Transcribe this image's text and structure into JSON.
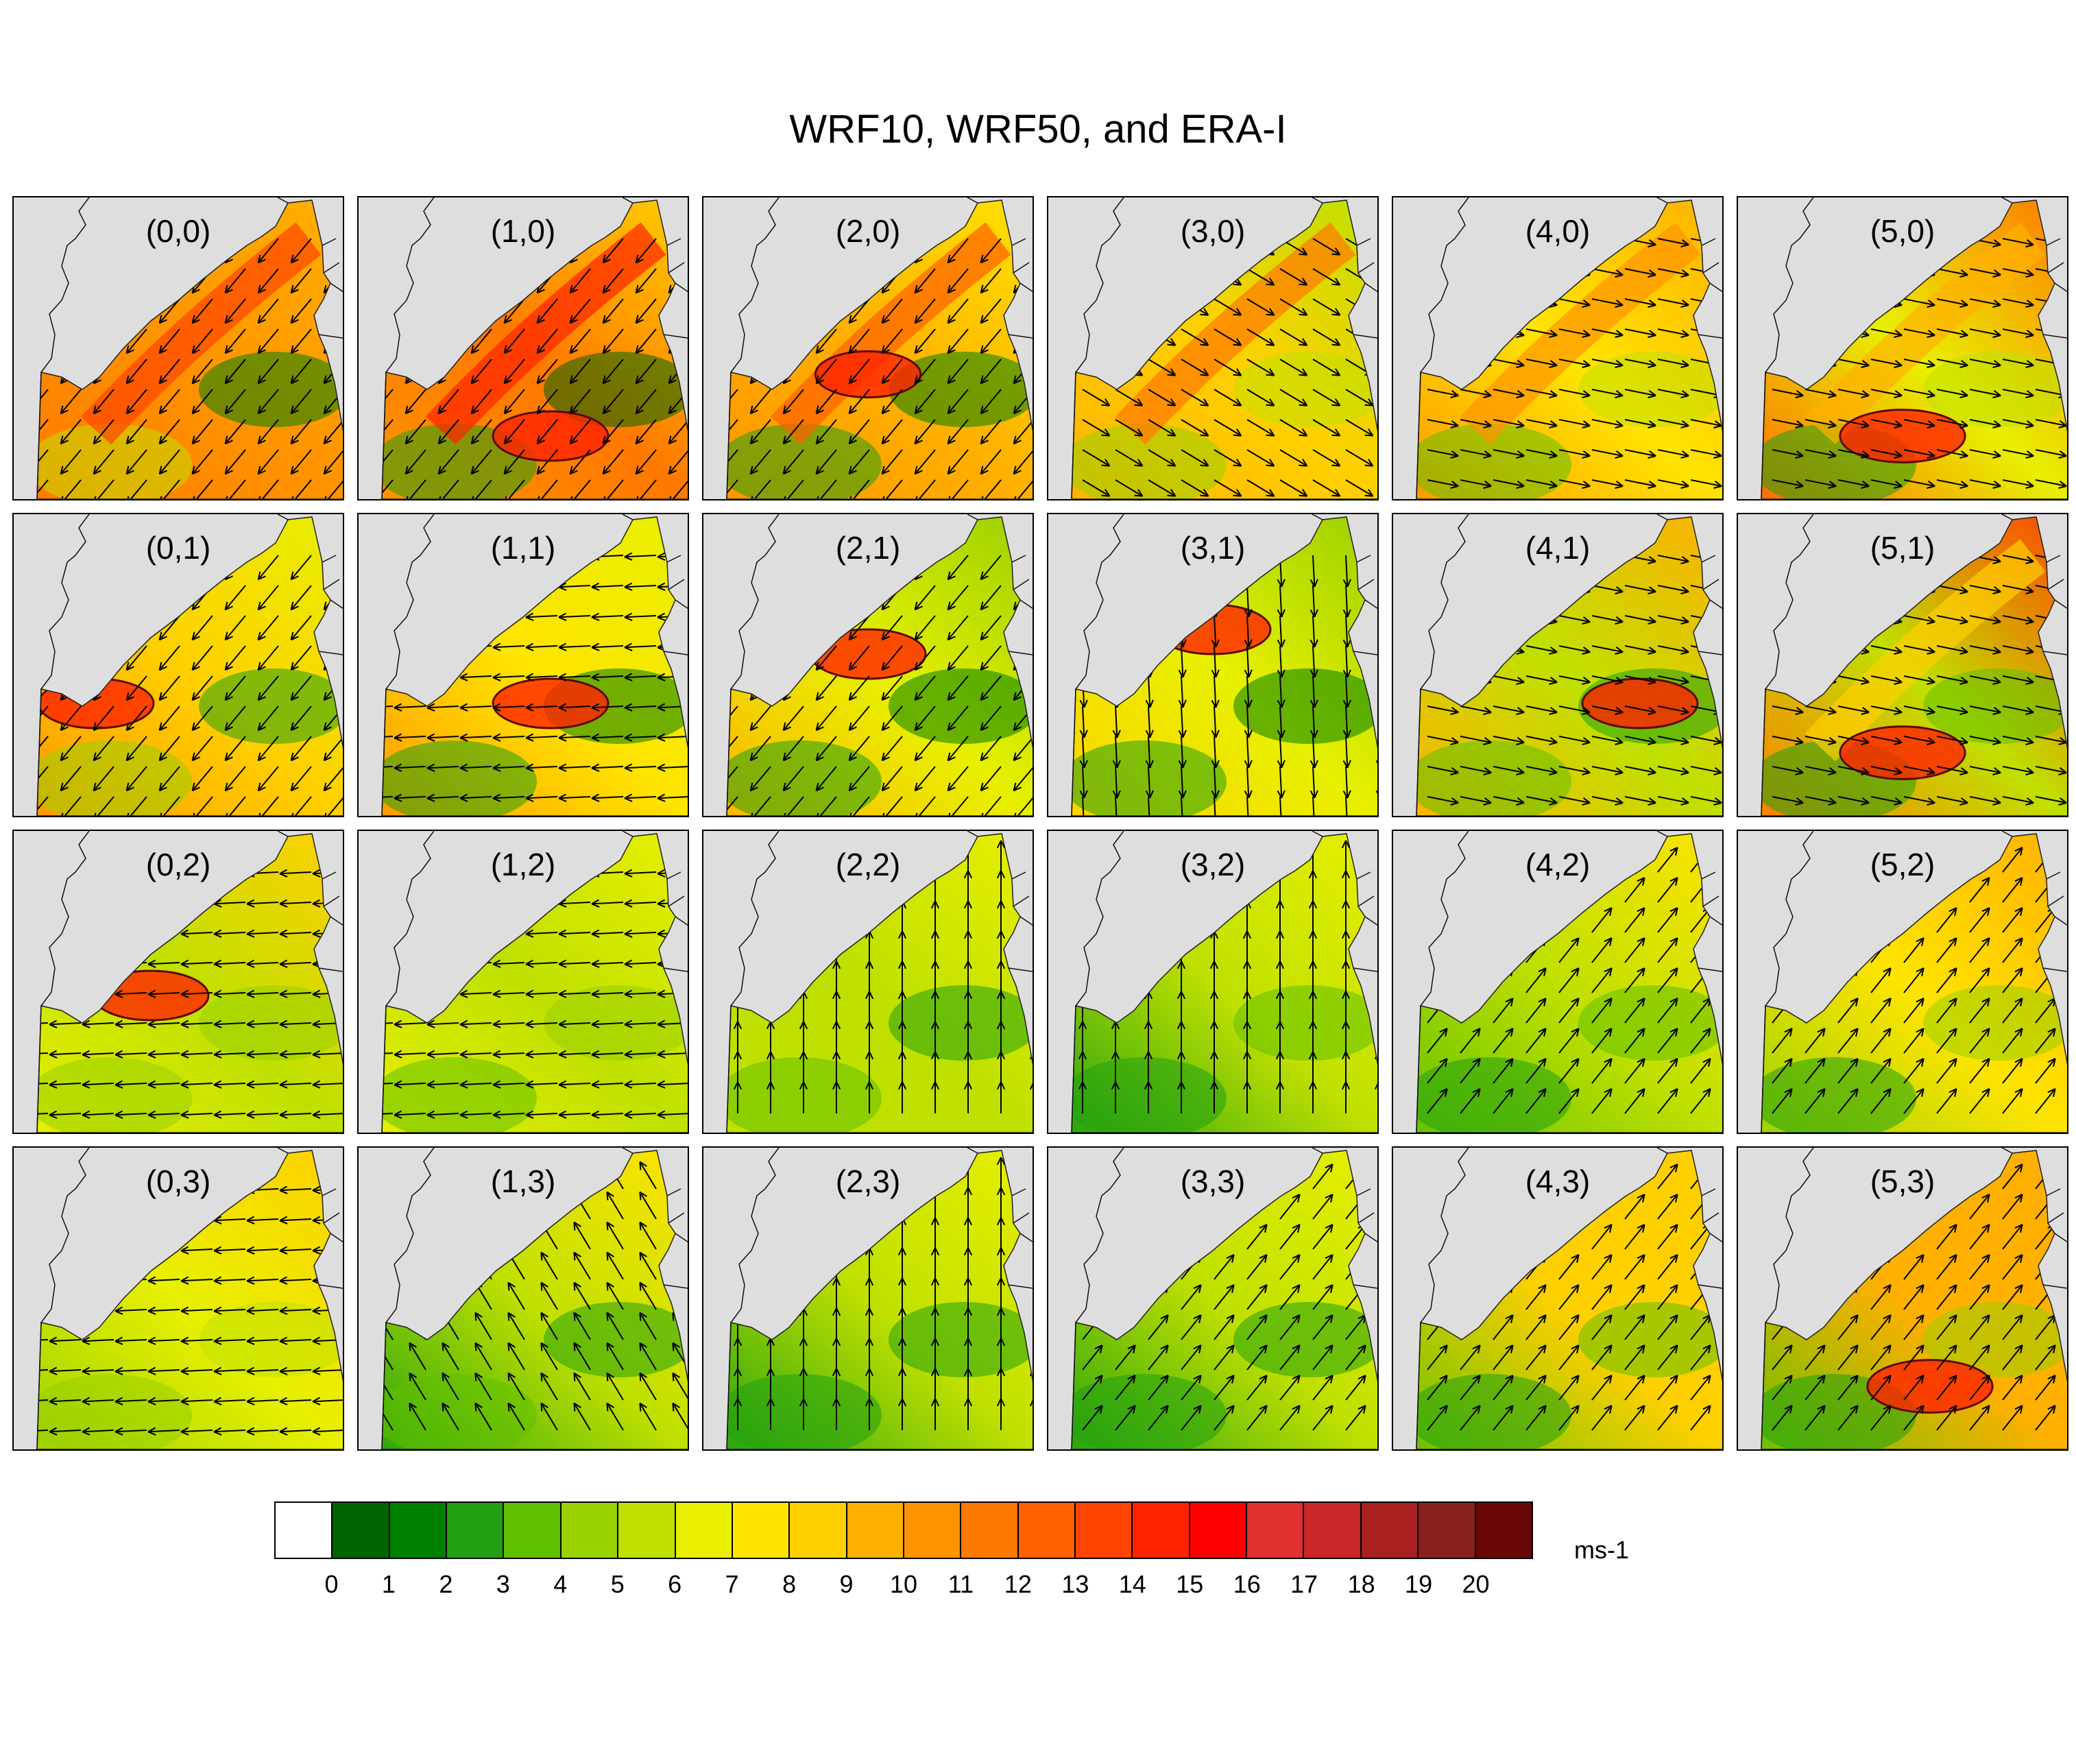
{
  "title": "WRF10, WRF50, and ERA-I",
  "panels": [
    {
      "label": "(0,0)",
      "c": [
        12,
        11,
        10
      ],
      "cs": [
        6,
        2
      ],
      "jet": 1,
      "ring": [
        -0.2,
        0.6,
        0.08
      ],
      "wind": "sw"
    },
    {
      "label": "(1,0)",
      "c": [
        11,
        12,
        9
      ],
      "cs": [
        3,
        1
      ],
      "jet": 1,
      "ring": [
        0.6,
        0.8,
        0.1
      ],
      "wind": "sw"
    },
    {
      "label": "(2,0)",
      "c": [
        11,
        10,
        8
      ],
      "cs": [
        3,
        2
      ],
      "jet": 1,
      "ring": [
        0.5,
        0.55,
        0.08
      ],
      "wind": "sw"
    },
    {
      "label": "(3,0)",
      "c": [
        10,
        9,
        6
      ],
      "cs": [
        5,
        6
      ],
      "jet": 1,
      "ring": [
        0.8,
        0.3,
        0.0
      ],
      "wind": "se"
    },
    {
      "label": "(4,0)",
      "c": [
        11,
        8,
        10
      ],
      "cs": [
        4,
        6
      ],
      "jet": 1,
      "ring": [
        0.9,
        0.3,
        0.0
      ],
      "wind": "e"
    },
    {
      "label": "(5,0)",
      "c": [
        13,
        7,
        12
      ],
      "cs": [
        3,
        6
      ],
      "jet": 1,
      "ring": [
        0.5,
        0.8,
        0.12
      ],
      "wind": "e"
    },
    {
      "label": "(0,1)",
      "c": [
        11,
        9,
        7
      ],
      "cs": [
        5,
        3
      ],
      "jet": 0,
      "ring": [
        0.2,
        0.6,
        0.1
      ],
      "wind": "sw"
    },
    {
      "label": "(1,1)",
      "c": [
        11,
        8,
        7
      ],
      "cs": [
        3,
        2
      ],
      "jet": 0,
      "ring": [
        0.6,
        0.6,
        0.1
      ],
      "wind": "w"
    },
    {
      "label": "(2,1)",
      "c": [
        10,
        7,
        5
      ],
      "cs": [
        3,
        2
      ],
      "jet": 0,
      "ring": [
        0.5,
        0.4,
        0.1
      ],
      "wind": "sw"
    },
    {
      "label": "(3,1)",
      "c": [
        9,
        7,
        5
      ],
      "cs": [
        3,
        2
      ],
      "jet": 0,
      "ring": [
        0.5,
        0.3,
        0.1
      ],
      "wind": "s"
    },
    {
      "label": "(4,1)",
      "c": [
        10,
        6,
        10
      ],
      "cs": [
        4,
        3
      ],
      "jet": 0,
      "ring": [
        0.8,
        0.6,
        0.1
      ],
      "wind": "e"
    },
    {
      "label": "(5,1)",
      "c": [
        12,
        6,
        14
      ],
      "cs": [
        3,
        4
      ],
      "jet": 1,
      "ring": [
        0.5,
        0.8,
        0.12
      ],
      "wind": "e"
    },
    {
      "label": "(0,2)",
      "c": [
        7,
        6,
        9
      ],
      "cs": [
        5,
        5
      ],
      "jet": 0,
      "ring": [
        0.4,
        0.5,
        0.1
      ],
      "wind": "w"
    },
    {
      "label": "(1,2)",
      "c": [
        7,
        6,
        7
      ],
      "cs": [
        4,
        5
      ],
      "jet": 0,
      "ring": [
        0.6,
        0.4,
        0.0
      ],
      "wind": "w"
    },
    {
      "label": "(2,2)",
      "c": [
        6,
        6,
        7
      ],
      "cs": [
        4,
        3
      ],
      "jet": 0,
      "ring": [
        0.6,
        0.2,
        0.0
      ],
      "wind": "n"
    },
    {
      "label": "(3,2)",
      "c": [
        3,
        6,
        7
      ],
      "cs": [
        3,
        4
      ],
      "jet": 0,
      "ring": [
        0.6,
        0.3,
        0.0
      ],
      "wind": "n"
    },
    {
      "label": "(4,2)",
      "c": [
        4,
        6,
        8
      ],
      "cs": [
        3,
        4
      ],
      "jet": 0,
      "ring": [
        0.7,
        0.4,
        0.0
      ],
      "wind": "ne"
    },
    {
      "label": "(5,2)",
      "c": [
        5,
        8,
        10
      ],
      "cs": [
        3,
        5
      ],
      "jet": 0,
      "ring": [
        0.8,
        0.5,
        0.0
      ],
      "wind": "ne"
    },
    {
      "label": "(0,3)",
      "c": [
        5,
        7,
        9
      ],
      "cs": [
        5,
        6
      ],
      "jet": 0,
      "ring": [
        0.4,
        0.4,
        0.0
      ],
      "wind": "w"
    },
    {
      "label": "(1,3)",
      "c": [
        3,
        6,
        8
      ],
      "cs": [
        4,
        3
      ],
      "jet": 0,
      "ring": [
        0.6,
        0.3,
        0.0
      ],
      "wind": "nw"
    },
    {
      "label": "(2,3)",
      "c": [
        3,
        6,
        7
      ],
      "cs": [
        3,
        3
      ],
      "jet": 0,
      "ring": [
        0.5,
        0.3,
        0.0
      ],
      "wind": "n"
    },
    {
      "label": "(3,3)",
      "c": [
        3,
        6,
        7
      ],
      "cs": [
        3,
        3
      ],
      "jet": 0,
      "ring": [
        0.5,
        0.3,
        0.0
      ],
      "wind": "ne"
    },
    {
      "label": "(4,3)",
      "c": [
        4,
        9,
        9
      ],
      "cs": [
        3,
        4
      ],
      "jet": 0,
      "ring": [
        0.7,
        0.5,
        0.0
      ],
      "wind": "ne"
    },
    {
      "label": "(5,3)",
      "c": [
        4,
        10,
        10
      ],
      "cs": [
        3,
        5
      ],
      "jet": 0,
      "ring": [
        0.6,
        0.8,
        0.12
      ],
      "wind": "ne"
    }
  ],
  "colorbar": {
    "colors": [
      "#ffffff",
      "#006400",
      "#008000",
      "#20a010",
      "#60c000",
      "#98d000",
      "#c0e000",
      "#e8f000",
      "#ffe400",
      "#ffd000",
      "#ffb000",
      "#ff9400",
      "#ff7800",
      "#ff6000",
      "#ff4400",
      "#ff2200",
      "#ff0000",
      "#e03030",
      "#c82828",
      "#a82020",
      "#882020",
      "#6a0808"
    ],
    "labels": [
      "0",
      "1",
      "2",
      "3",
      "4",
      "5",
      "6",
      "7",
      "8",
      "9",
      "10",
      "11",
      "12",
      "13",
      "14",
      "15",
      "16",
      "17",
      "18",
      "19",
      "20"
    ],
    "units": "ms-1"
  }
}
